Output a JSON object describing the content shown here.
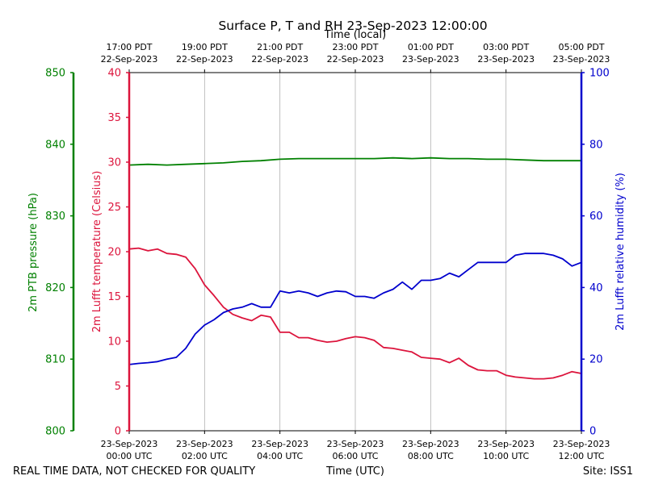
{
  "chart_data": {
    "type": "line",
    "title": "Surface P, T and RH 23-Sep-2023 12:00:00",
    "xlabel_bottom": "Time (UTC)",
    "xlabel_top": "Time (local)",
    "x_range_hours_utc": [
      0,
      12
    ],
    "bottom_ticks": [
      {
        "hour": 0,
        "line1": "23-Sep-2023",
        "line2": "00:00 UTC"
      },
      {
        "hour": 2,
        "line1": "23-Sep-2023",
        "line2": "02:00 UTC"
      },
      {
        "hour": 4,
        "line1": "23-Sep-2023",
        "line2": "04:00 UTC"
      },
      {
        "hour": 6,
        "line1": "23-Sep-2023",
        "line2": "06:00 UTC"
      },
      {
        "hour": 8,
        "line1": "23-Sep-2023",
        "line2": "08:00 UTC"
      },
      {
        "hour": 10,
        "line1": "23-Sep-2023",
        "line2": "10:00 UTC"
      },
      {
        "hour": 12,
        "line1": "23-Sep-2023",
        "line2": "12:00 UTC"
      }
    ],
    "top_ticks": [
      {
        "hour": 0,
        "line1": "17:00 PDT",
        "line2": "22-Sep-2023"
      },
      {
        "hour": 2,
        "line1": "19:00 PDT",
        "line2": "22-Sep-2023"
      },
      {
        "hour": 4,
        "line1": "21:00 PDT",
        "line2": "22-Sep-2023"
      },
      {
        "hour": 6,
        "line1": "23:00 PDT",
        "line2": "22-Sep-2023"
      },
      {
        "hour": 8,
        "line1": "01:00 PDT",
        "line2": "23-Sep-2023"
      },
      {
        "hour": 10,
        "line1": "03:00 PDT",
        "line2": "23-Sep-2023"
      },
      {
        "hour": 12,
        "line1": "05:00 PDT",
        "line2": "23-Sep-2023"
      }
    ],
    "axes": {
      "pressure": {
        "label": "2m PTB pressure (hPa)",
        "range": [
          800,
          850
        ],
        "ticks": [
          800,
          810,
          820,
          830,
          840,
          850
        ],
        "color": "#008000"
      },
      "temperature": {
        "label": "2m Lufft temperature (Celsius)",
        "range": [
          0,
          40
        ],
        "ticks": [
          0,
          5,
          10,
          15,
          20,
          25,
          30,
          35,
          40
        ],
        "color": "#dc143c"
      },
      "humidity": {
        "label": "2m Lufft relative humidity (%)",
        "range": [
          0,
          100
        ],
        "ticks": [
          0,
          20,
          40,
          60,
          80,
          100
        ],
        "color": "#0000cd"
      }
    },
    "series": [
      {
        "name": "pressure",
        "axis": "pressure",
        "color": "#008000",
        "x": [
          0,
          0.5,
          1,
          1.5,
          2,
          2.5,
          3,
          3.5,
          4,
          4.5,
          5,
          5.5,
          6,
          6.5,
          7,
          7.5,
          8,
          8.5,
          9,
          9.5,
          10,
          10.5,
          11,
          11.5,
          12
        ],
        "values": [
          837.1,
          837.2,
          837.1,
          837.2,
          837.3,
          837.4,
          837.6,
          837.7,
          837.9,
          838.0,
          838.0,
          838.0,
          838.0,
          838.0,
          838.1,
          838.0,
          838.1,
          838.0,
          838.0,
          837.9,
          837.9,
          837.8,
          837.7,
          837.7,
          837.7
        ]
      },
      {
        "name": "temperature",
        "axis": "temperature",
        "color": "#dc143c",
        "x": [
          0,
          0.25,
          0.5,
          0.75,
          1,
          1.25,
          1.5,
          1.75,
          2,
          2.25,
          2.5,
          2.75,
          3,
          3.25,
          3.5,
          3.75,
          4,
          4.25,
          4.5,
          4.75,
          5,
          5.25,
          5.5,
          5.75,
          6,
          6.25,
          6.5,
          6.75,
          7,
          7.25,
          7.5,
          7.75,
          8,
          8.25,
          8.5,
          8.75,
          9,
          9.25,
          9.5,
          9.75,
          10,
          10.25,
          10.5,
          10.75,
          11,
          11.25,
          11.5,
          11.75,
          12
        ],
        "values": [
          20.3,
          20.4,
          20.1,
          20.3,
          19.8,
          19.7,
          19.4,
          18.1,
          16.3,
          15.1,
          13.8,
          13.0,
          12.6,
          12.3,
          12.9,
          12.7,
          11.0,
          11.0,
          10.4,
          10.4,
          10.1,
          9.9,
          10.0,
          10.3,
          10.5,
          10.4,
          10.1,
          9.3,
          9.2,
          9.0,
          8.8,
          8.2,
          8.1,
          8.0,
          7.6,
          8.1,
          7.3,
          6.8,
          6.7,
          6.7,
          6.2,
          6.0,
          5.9,
          5.8,
          5.8,
          5.9,
          6.2,
          6.6,
          6.4
        ]
      },
      {
        "name": "humidity",
        "axis": "humidity",
        "color": "#0000cd",
        "x": [
          0,
          0.25,
          0.5,
          0.75,
          1,
          1.25,
          1.5,
          1.75,
          2,
          2.25,
          2.5,
          2.75,
          3,
          3.25,
          3.5,
          3.75,
          4,
          4.25,
          4.5,
          4.75,
          5,
          5.25,
          5.5,
          5.75,
          6,
          6.25,
          6.5,
          6.75,
          7,
          7.25,
          7.5,
          7.75,
          8,
          8.25,
          8.5,
          8.75,
          9,
          9.25,
          9.5,
          9.75,
          10,
          10.25,
          10.5,
          10.75,
          11,
          11.25,
          11.5,
          11.75,
          12
        ],
        "values": [
          18.5,
          18.8,
          19.0,
          19.3,
          20.0,
          20.5,
          23.0,
          27.0,
          29.5,
          31.0,
          33.0,
          34.0,
          34.5,
          35.5,
          34.5,
          34.5,
          39.0,
          38.5,
          39.0,
          38.5,
          37.5,
          38.5,
          39.0,
          38.8,
          37.5,
          37.5,
          37.0,
          38.5,
          39.5,
          41.5,
          39.5,
          42.0,
          42.0,
          42.5,
          44.0,
          43.0,
          45.0,
          47.0,
          47.0,
          47.0,
          47.0,
          49.0,
          49.5,
          49.5,
          49.5,
          49.0,
          48.0,
          46.0,
          47.0
        ]
      }
    ]
  },
  "footer": {
    "disclaimer": "REAL TIME DATA, NOT CHECKED FOR QUALITY",
    "site": "Site: ISS1"
  }
}
